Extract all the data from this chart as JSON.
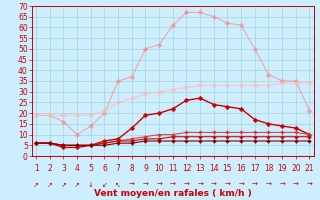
{
  "x": [
    1,
    2,
    3,
    4,
    5,
    6,
    7,
    8,
    9,
    10,
    11,
    12,
    13,
    14,
    15,
    16,
    17,
    18,
    19,
    20,
    21
  ],
  "series": [
    {
      "color": "#ff8888",
      "alpha": 0.7,
      "linewidth": 0.8,
      "markersize": 2.5,
      "y": [
        19,
        19,
        16,
        10,
        14,
        20,
        35,
        37,
        50,
        52,
        61,
        67,
        67,
        65,
        62,
        61,
        50,
        38,
        35,
        35,
        21
      ]
    },
    {
      "color": "#ffbbbb",
      "alpha": 0.8,
      "linewidth": 0.8,
      "markersize": 2.5,
      "y": [
        19,
        19,
        19,
        19,
        19,
        21,
        25,
        27,
        29,
        30,
        31,
        32,
        33,
        33,
        33,
        33,
        33,
        33,
        34,
        34,
        34
      ]
    },
    {
      "color": "#cc0000",
      "alpha": 1.0,
      "linewidth": 1.0,
      "markersize": 2.5,
      "y": [
        6,
        6,
        4,
        4,
        5,
        7,
        8,
        13,
        19,
        20,
        22,
        26,
        27,
        24,
        23,
        22,
        17,
        15,
        14,
        13,
        10
      ]
    },
    {
      "color": "#dd3333",
      "alpha": 0.9,
      "linewidth": 0.8,
      "markersize": 2,
      "y": [
        6,
        6,
        5,
        5,
        5,
        6,
        7,
        8,
        9,
        10,
        10,
        11,
        11,
        11,
        11,
        11,
        11,
        11,
        11,
        11,
        10
      ]
    },
    {
      "color": "#bb1111",
      "alpha": 1.0,
      "linewidth": 0.8,
      "markersize": 2,
      "y": [
        6,
        6,
        5,
        5,
        5,
        6,
        7,
        7,
        8,
        8,
        9,
        9,
        9,
        9,
        9,
        9,
        9,
        9,
        9,
        9,
        9
      ]
    },
    {
      "color": "#880000",
      "alpha": 1.0,
      "linewidth": 0.8,
      "markersize": 2,
      "y": [
        6,
        6,
        5,
        5,
        5,
        5,
        6,
        6,
        7,
        7,
        7,
        7,
        7,
        7,
        7,
        7,
        7,
        7,
        7,
        7,
        7
      ]
    }
  ],
  "xlabel": "Vent moyen/en rafales ( km/h )",
  "xlim": [
    1,
    21
  ],
  "ylim": [
    0,
    70
  ],
  "yticks": [
    0,
    5,
    10,
    15,
    20,
    25,
    30,
    35,
    40,
    45,
    50,
    55,
    60,
    65,
    70
  ],
  "xticks": [
    1,
    2,
    3,
    4,
    5,
    6,
    7,
    8,
    9,
    10,
    11,
    12,
    13,
    14,
    15,
    16,
    17,
    18,
    19,
    20,
    21
  ],
  "bg_color": "#cceeff",
  "grid_color": "#99cccc",
  "axis_color": "#cc0000",
  "tick_color": "#cc0000",
  "label_color": "#cc0000",
  "xlabel_fontsize": 6.5,
  "tick_fontsize": 5.5,
  "arrow_symbols": [
    "↗",
    "↗",
    "↗",
    "↗",
    "↓",
    "↙",
    "↖",
    "→",
    "→",
    "→",
    "→",
    "→",
    "→",
    "→",
    "→",
    "→",
    "→",
    "→",
    "→",
    "→",
    "→"
  ]
}
